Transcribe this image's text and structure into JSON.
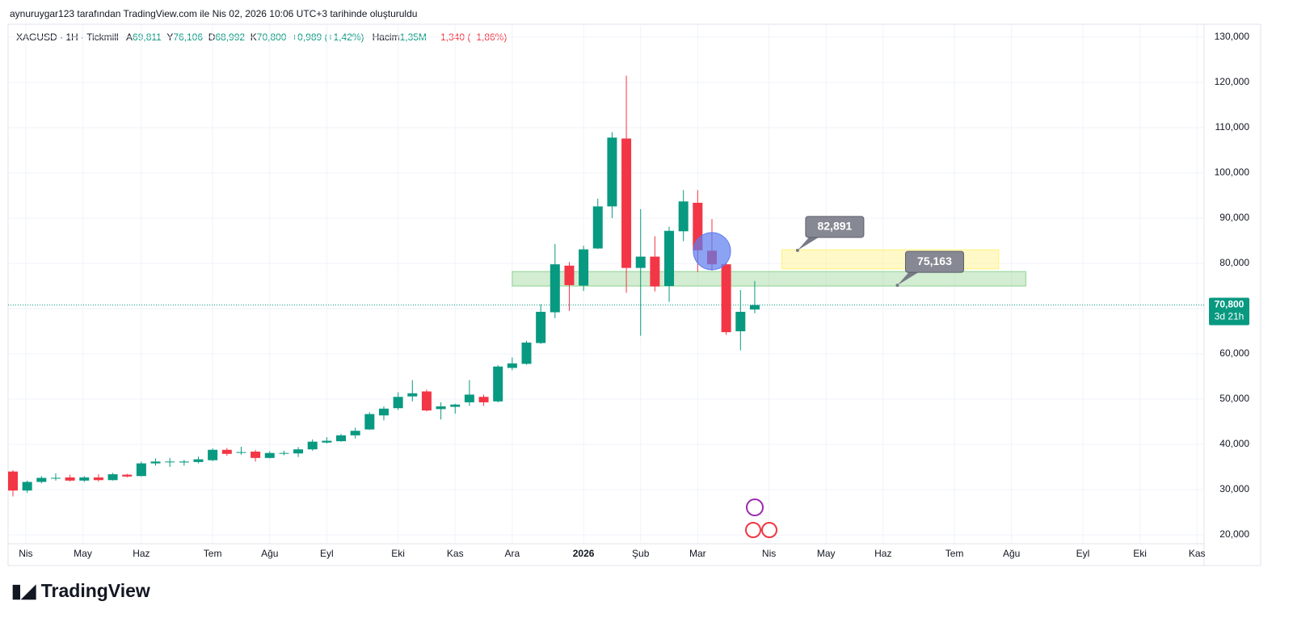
{
  "watermark": "aynuruygar123 tarafından TradingView.com ile Nis 02, 2026 10:06 UTC+3 tarihinde oluşturuldu",
  "logo": "TradingView",
  "chart_data": {
    "type": "candlestick",
    "header": {
      "symbol": "XAGUSD · 1H · Tickmill",
      "open_label": "A",
      "open": "69,811",
      "high_label": "Y",
      "high": "76,106",
      "low_label": "D",
      "low": "68,992",
      "close_label": "K",
      "close": "70,800",
      "change": "+0,989 (+1,42%)",
      "volume_label": "Hacim",
      "volume": "1,35M",
      "volume_change": "−1,340 (−1,86%)"
    },
    "up_color": "#089981",
    "down_color": "#f23645",
    "x": [
      0,
      1,
      2,
      3,
      4,
      5,
      6,
      7,
      8,
      9,
      10,
      11,
      12,
      13,
      14,
      15,
      16,
      17,
      18,
      19,
      20,
      21,
      22,
      23,
      24,
      25,
      26,
      27,
      28,
      29,
      30,
      31,
      32,
      33,
      34,
      35,
      36,
      37,
      38,
      39,
      40,
      41,
      42,
      43,
      44,
      45,
      46,
      47,
      48,
      49,
      50,
      51,
      52
    ],
    "open": [
      34.0,
      29.8,
      31.7,
      32.6,
      32.7,
      32.0,
      32.7,
      32.1,
      33.3,
      33.0,
      35.8,
      36.2,
      36.0,
      36.1,
      36.5,
      38.8,
      38.3,
      38.4,
      37.0,
      38.1,
      38.0,
      38.9,
      40.4,
      40.7,
      42.0,
      43.3,
      46.4,
      48.0,
      50.6,
      51.7,
      47.8,
      48.3,
      49.3,
      50.5,
      49.5,
      56.9,
      57.8,
      62.4,
      69.2,
      79.5,
      75.1,
      83.3,
      92.6,
      107.6,
      79.0,
      81.5,
      75.0,
      87.1,
      93.4,
      82.8,
      79.8,
      65.0,
      69.811
    ],
    "high": [
      34.3,
      32.0,
      33.0,
      33.6,
      33.3,
      33.0,
      33.4,
      33.7,
      33.5,
      36.2,
      36.9,
      37.0,
      36.6,
      37.3,
      39.1,
      39.2,
      39.5,
      38.8,
      38.5,
      38.6,
      39.4,
      41.1,
      41.6,
      42.3,
      43.7,
      47.1,
      48.4,
      51.5,
      54.2,
      52.1,
      49.3,
      49.0,
      54.2,
      51.0,
      57.5,
      59.2,
      62.9,
      71.0,
      84.3,
      80.3,
      83.9,
      94.3,
      109.0,
      121.5,
      92.0,
      86.0,
      88.1,
      96.2,
      96.2,
      89.8,
      80.2,
      74.1,
      76.106
    ],
    "low": [
      28.5,
      29.3,
      31.4,
      32.0,
      31.8,
      31.7,
      31.8,
      32.0,
      32.7,
      32.9,
      35.3,
      35.0,
      35.3,
      35.8,
      36.3,
      37.5,
      37.7,
      36.2,
      36.9,
      37.6,
      37.2,
      38.6,
      40.2,
      40.6,
      41.3,
      43.2,
      45.3,
      47.6,
      49.5,
      47.3,
      45.5,
      46.8,
      48.5,
      48.5,
      49.3,
      56.4,
      57.6,
      62.2,
      67.9,
      69.5,
      73.9,
      83.2,
      90.0,
      73.5,
      64.0,
      73.8,
      71.5,
      84.9,
      78.1,
      78.4,
      64.2,
      60.8,
      68.992
    ],
    "close": [
      29.8,
      31.7,
      32.6,
      32.6,
      32.0,
      32.7,
      32.1,
      33.4,
      32.9,
      35.8,
      36.2,
      36.2,
      36.2,
      36.7,
      38.8,
      37.9,
      38.3,
      37.0,
      38.1,
      38.1,
      38.9,
      40.6,
      40.8,
      42.0,
      43.0,
      46.7,
      47.9,
      50.5,
      51.3,
      47.5,
      48.4,
      48.8,
      51.0,
      49.3,
      57.2,
      57.9,
      62.5,
      69.3,
      79.8,
      75.2,
      83.1,
      92.6,
      107.8,
      79.0,
      81.5,
      74.9,
      87.2,
      93.7,
      82.9,
      79.8,
      64.8,
      69.3,
      70.8
    ],
    "xlim": [
      -0.34,
      83.5
    ],
    "xticks": [
      {
        "value": 0.9,
        "label": "Nis"
      },
      {
        "value": 4.9,
        "label": "May"
      },
      {
        "value": 9.0,
        "label": "Haz"
      },
      {
        "value": 14.0,
        "label": "Tem"
      },
      {
        "value": 18.0,
        "label": "Ağu"
      },
      {
        "value": 22.0,
        "label": "Eyl"
      },
      {
        "value": 27.0,
        "label": "Eki"
      },
      {
        "value": 31.0,
        "label": "Kas"
      },
      {
        "value": 35.0,
        "label": "Ara"
      },
      {
        "value": 40.0,
        "label": "2026"
      },
      {
        "value": 44.0,
        "label": "Şub"
      },
      {
        "value": 48.0,
        "label": "Mar"
      },
      {
        "value": 53.0,
        "label": "Nis"
      },
      {
        "value": 57.0,
        "label": "May"
      },
      {
        "value": 61.0,
        "label": "Haz"
      },
      {
        "value": 66.0,
        "label": "Tem"
      },
      {
        "value": 70.0,
        "label": "Ağu"
      },
      {
        "value": 75.0,
        "label": "Eyl"
      },
      {
        "value": 79.0,
        "label": "Eki"
      },
      {
        "value": 83.0,
        "label": "Kas"
      }
    ],
    "ylim": [
      18.04,
      132.86
    ],
    "yticks": [
      {
        "value": 20,
        "label": "20,000"
      },
      {
        "value": 30,
        "label": "30,000"
      },
      {
        "value": 40,
        "label": "40,000"
      },
      {
        "value": 50,
        "label": "50,000"
      },
      {
        "value": 60,
        "label": "60,000"
      },
      {
        "value": 70,
        "label": "70,000"
      },
      {
        "value": 80,
        "label": "80,000"
      },
      {
        "value": 90,
        "label": "90,000"
      },
      {
        "value": 100,
        "label": "100,000"
      },
      {
        "value": 110,
        "label": "110,000"
      },
      {
        "value": 120,
        "label": "120,000"
      },
      {
        "value": 130,
        "label": "130,000"
      }
    ],
    "grid": true,
    "last_price": {
      "value": 70.8,
      "label": "70,800"
    },
    "countdown": "3d 21h",
    "zones": [
      {
        "color": "#8fd18f",
        "top": 78.2,
        "bottom": 75.0,
        "x": [
          35.0,
          71.0
        ]
      },
      {
        "color": "#fff176",
        "top": 83.0,
        "bottom": 78.8,
        "x": [
          53.9,
          69.1
        ]
      }
    ],
    "annotations": [
      {
        "value": 82.891,
        "label": "82,891",
        "x": 55.0
      },
      {
        "value": 75.163,
        "label": "75,163",
        "x": 62.0
      }
    ],
    "marker": {
      "x": 49,
      "value": 82.7,
      "color": "#5b7cf0"
    }
  }
}
